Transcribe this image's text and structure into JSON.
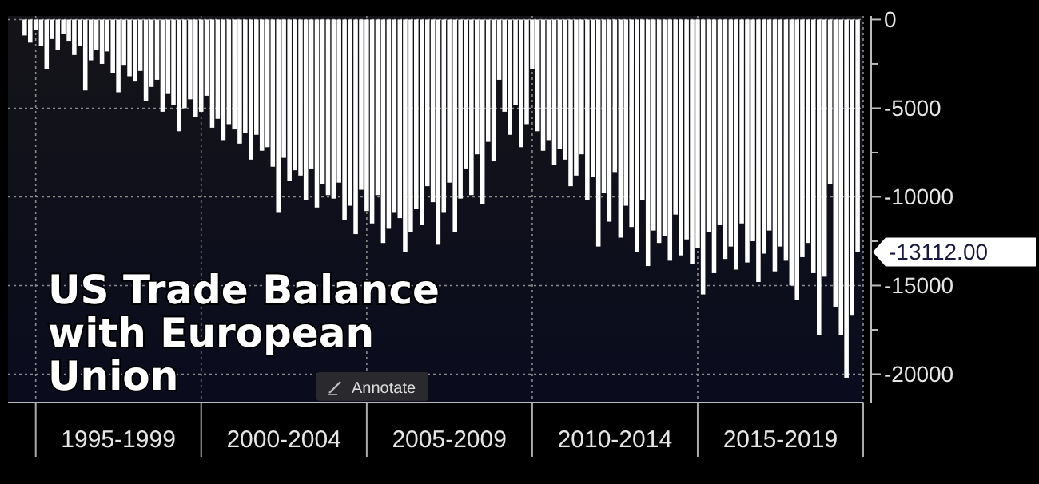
{
  "chart_data": {
    "type": "bar",
    "title": "US Trade Balance with European Union",
    "x": [
      "1994-09",
      "1994-11",
      "1995-01",
      "1995-03",
      "1995-05",
      "1995-07",
      "1995-09",
      "1995-11",
      "1996-01",
      "1996-03",
      "1996-05",
      "1996-07",
      "1996-09",
      "1996-11",
      "1997-01",
      "1997-03",
      "1997-05",
      "1997-07",
      "1997-09",
      "1997-11",
      "1998-01",
      "1998-03",
      "1998-05",
      "1998-07",
      "1998-09",
      "1998-11",
      "1999-01",
      "1999-03",
      "1999-05",
      "1999-07",
      "1999-09",
      "1999-11",
      "2000-01",
      "2000-03",
      "2000-05",
      "2000-07",
      "2000-09",
      "2000-11",
      "2001-01",
      "2001-03",
      "2001-05",
      "2001-07",
      "2001-09",
      "2001-11",
      "2002-01",
      "2002-03",
      "2002-05",
      "2002-07",
      "2002-09",
      "2002-11",
      "2003-01",
      "2003-03",
      "2003-05",
      "2003-07",
      "2003-09",
      "2003-11",
      "2004-01",
      "2004-03",
      "2004-05",
      "2004-07",
      "2004-09",
      "2004-11",
      "2005-01",
      "2005-03",
      "2005-05",
      "2005-07",
      "2005-09",
      "2005-11",
      "2006-01",
      "2006-03",
      "2006-05",
      "2006-07",
      "2006-09",
      "2006-11",
      "2007-01",
      "2007-03",
      "2007-05",
      "2007-07",
      "2007-09",
      "2007-11",
      "2008-01",
      "2008-03",
      "2008-05",
      "2008-07",
      "2008-09",
      "2008-11",
      "2009-01",
      "2009-03",
      "2009-05",
      "2009-07",
      "2009-09",
      "2009-11",
      "2010-01",
      "2010-03",
      "2010-05",
      "2010-07",
      "2010-09",
      "2010-11",
      "2011-01",
      "2011-03",
      "2011-05",
      "2011-07",
      "2011-09",
      "2011-11",
      "2012-01",
      "2012-03",
      "2012-05",
      "2012-07",
      "2012-09",
      "2012-11",
      "2013-01",
      "2013-03",
      "2013-05",
      "2013-07",
      "2013-09",
      "2013-11",
      "2014-01",
      "2014-03",
      "2014-05",
      "2014-07",
      "2014-09",
      "2014-11",
      "2015-01",
      "2015-03",
      "2015-05",
      "2015-07",
      "2015-09",
      "2015-11",
      "2016-01",
      "2016-03",
      "2016-05",
      "2016-07",
      "2016-09",
      "2016-11",
      "2017-01",
      "2017-03",
      "2017-05",
      "2017-07",
      "2017-09",
      "2017-11",
      "2018-01",
      "2018-03",
      "2018-05",
      "2018-07",
      "2018-09",
      "2018-11",
      "2019-01",
      "2019-03",
      "2019-05",
      "2019-07",
      "2019-09",
      "2019-11"
    ],
    "series": [
      {
        "color": "#ffffff",
        "values": [
          -900,
          -1300,
          -600,
          -1500,
          -2800,
          -1100,
          -1700,
          -800,
          -1200,
          -2000,
          -1500,
          -4000,
          -2300,
          -1700,
          -2500,
          -1800,
          -3000,
          -4100,
          -2600,
          -3200,
          -3500,
          -2900,
          -4600,
          -3800,
          -3400,
          -5200,
          -4200,
          -4800,
          -6300,
          -5000,
          -4500,
          -5500,
          -5200,
          -4300,
          -6100,
          -5600,
          -6800,
          -5900,
          -6200,
          -7000,
          -6400,
          -7900,
          -6500,
          -7400,
          -7200,
          -8300,
          -10900,
          -7800,
          -9100,
          -8500,
          -8800,
          -10200,
          -8400,
          -10600,
          -9300,
          -9900,
          -10100,
          -9200,
          -11300,
          -10500,
          -12100,
          -9600,
          -10800,
          -11500,
          -9900,
          -12600,
          -11800,
          -10900,
          -11200,
          -13100,
          -12000,
          -10700,
          -11600,
          -9400,
          -10300,
          -12700,
          -10900,
          -9200,
          -12000,
          -10100,
          -8400,
          -9900,
          -7600,
          -10400,
          -6900,
          -8000,
          -3400,
          -5200,
          -6500,
          -4800,
          -7200,
          -5900,
          -2800,
          -6300,
          -7400,
          -6800,
          -8200,
          -7300,
          -7900,
          -9400,
          -8800,
          -7600,
          -10200,
          -8900,
          -12800,
          -9800,
          -11400,
          -8600,
          -12300,
          -10500,
          -11700,
          -13100,
          -10200,
          -13900,
          -11900,
          -12600,
          -12200,
          -13600,
          -11000,
          -13300,
          -12400,
          -13800,
          -12900,
          -15500,
          -12000,
          -14300,
          -11600,
          -13500,
          -12800,
          -14100,
          -11500,
          -13700,
          -12500,
          -14800,
          -13200,
          -11900,
          -14200,
          -12800,
          -13600,
          -15000,
          -15800,
          -13400,
          -12600,
          -14300,
          -17800,
          -14500,
          -9300,
          -16200,
          -17800,
          -20200,
          -16700,
          -13100
        ]
      }
    ],
    "xlim": [
      "1994-03",
      "2020-01"
    ],
    "xticks": [
      {
        "value": "1995-01",
        "label": null
      },
      {
        "value": "1997-07",
        "label": "1995-1999"
      },
      {
        "value": "2000-01",
        "label": null
      },
      {
        "value": "2002-07",
        "label": "2000-2004"
      },
      {
        "value": "2005-01",
        "label": null
      },
      {
        "value": "2007-07",
        "label": "2005-2009"
      },
      {
        "value": "2010-01",
        "label": null
      },
      {
        "value": "2012-07",
        "label": "2010-2014"
      },
      {
        "value": "2015-01",
        "label": null
      },
      {
        "value": "2017-07",
        "label": "2015-2019"
      },
      {
        "value": "2020-01",
        "label": null
      }
    ],
    "ylim": [
      -21600,
      200
    ],
    "yticks": [
      0,
      {
        "value": -2500,
        "label": null
      },
      -5000,
      {
        "value": -7500,
        "label": null
      },
      -10000,
      {
        "value": -12500,
        "label": null
      },
      -15000,
      {
        "value": -17500,
        "label": null
      },
      -20000
    ],
    "grid": true,
    "annotations": [
      "Annotate",
      {
        "text": "-13112.00",
        "x": "2019-11",
        "y": -13112
      }
    ]
  }
}
